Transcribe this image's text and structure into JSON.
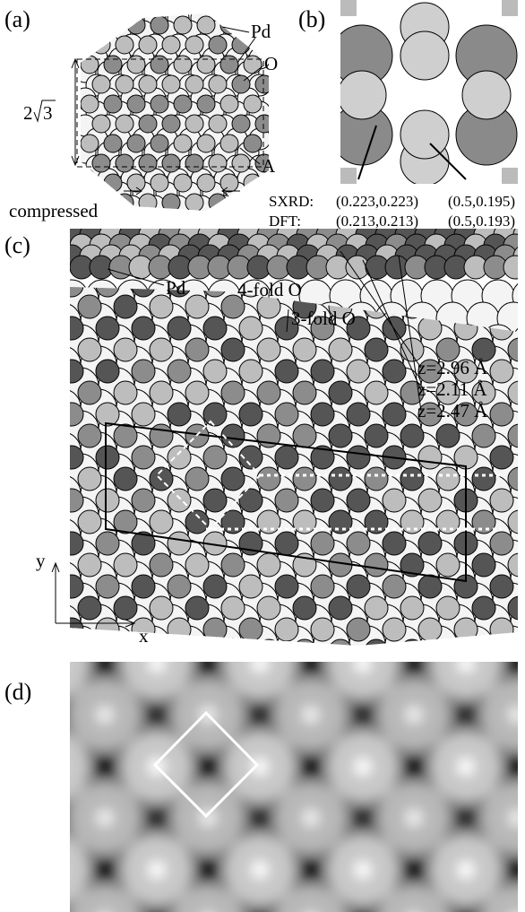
{
  "panels": [
    {
      "label": "(a)",
      "annotations": [
        "Pd",
        "O",
        "A"
      ],
      "dimension": {
        "coef": "2",
        "root": "3"
      },
      "caption": "compressed"
    },
    {
      "label": "(b)",
      "table": [
        [
          "SXRD:",
          "(0.223,0.223)",
          "(0.5,0.195)"
        ],
        [
          "DFT:",
          "(0.213,0.213)",
          "(0.5,0.193)"
        ]
      ]
    },
    {
      "label": "(c)",
      "annotations": [
        "Pd",
        "4-fold O",
        "3-fold O"
      ],
      "heights": [
        "z=2.96 Å",
        "z=2.11 Å",
        "z=2.47 Å"
      ],
      "axes": [
        "y",
        "x"
      ]
    },
    {
      "label": "(d)"
    }
  ]
}
